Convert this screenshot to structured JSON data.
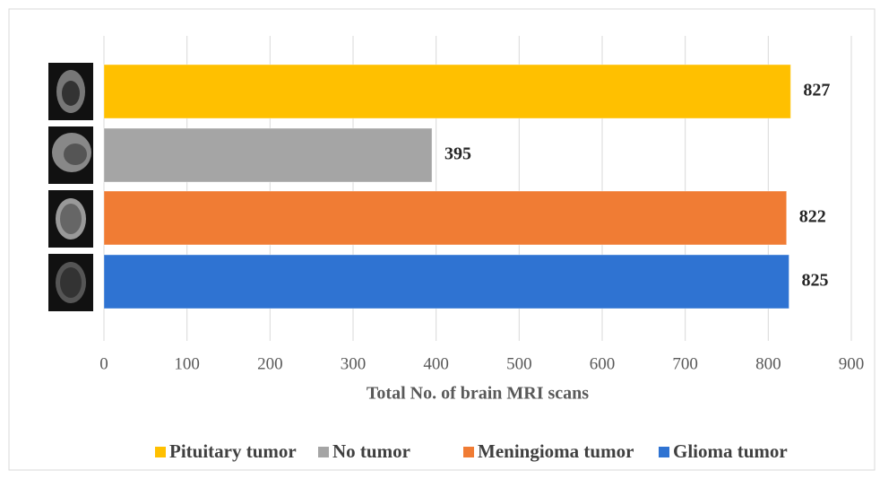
{
  "chart_data": {
    "type": "hbar",
    "series": [
      {
        "name": "Pituitary tumor",
        "color": "#ffc000",
        "values": [
          827
        ]
      },
      {
        "name": "No tumor",
        "color": "#a5a5a5",
        "values": [
          395
        ]
      },
      {
        "name": "Meningioma tumor",
        "color": "#f07c34",
        "values": [
          822
        ]
      },
      {
        "name": "Glioma tumor",
        "color": "#2f73d2",
        "values": [
          825
        ]
      }
    ],
    "xlabel": "Total No. of brain MRI scans",
    "xlim": [
      0,
      900
    ],
    "xticks": [
      0,
      100,
      200,
      300,
      400,
      500,
      600,
      700,
      800,
      900
    ],
    "grid": true,
    "legend": "bottom"
  }
}
